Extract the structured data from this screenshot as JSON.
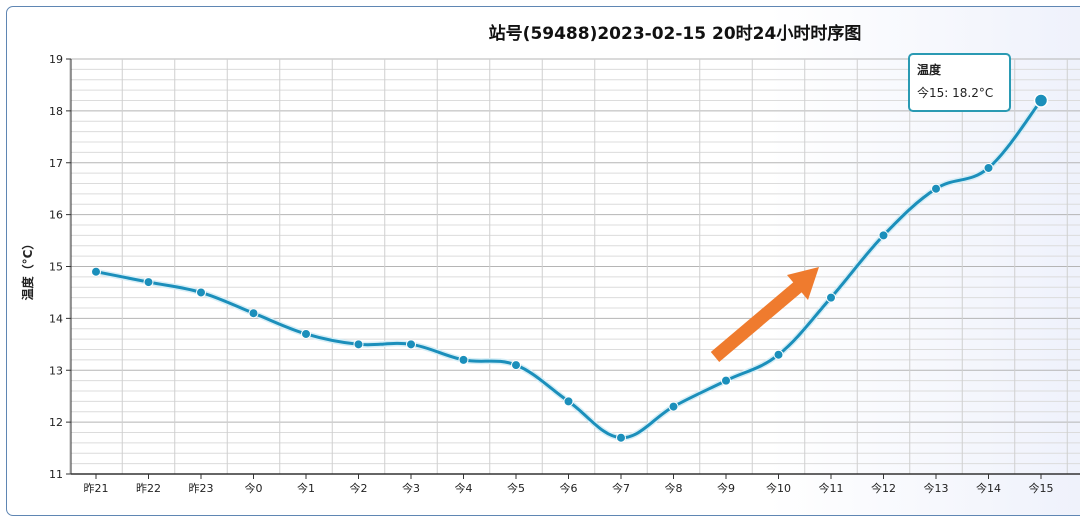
{
  "chart_data": {
    "type": "line",
    "title": "站号(59488)2023-02-15 20时24小时时序图",
    "ylabel": "温度（°C）",
    "ylim": [
      11,
      19
    ],
    "yticks": [
      "11",
      "12",
      "13",
      "14",
      "15",
      "16",
      "17",
      "18",
      "19"
    ],
    "categories": [
      "昨21",
      "昨22",
      "昨23",
      "今0",
      "今1",
      "今2",
      "今3",
      "今4",
      "今5",
      "今6",
      "今7",
      "今8",
      "今9",
      "今10",
      "今11",
      "今12",
      "今13",
      "今14",
      "今15"
    ],
    "series": [
      {
        "values": [
          14.9,
          14.7,
          14.5,
          14.1,
          13.7,
          13.5,
          13.5,
          13.2,
          13.1,
          12.4,
          11.7,
          12.3,
          12.8,
          13.3,
          14.4,
          15.6,
          16.5,
          16.9,
          18.2
        ]
      }
    ],
    "line_color": "#1b8fbb",
    "arrow_color": "#ef7b2e",
    "grid": true,
    "tooltip": {
      "title": "温度",
      "text": "今15: 18.2°C",
      "index": 18
    }
  }
}
